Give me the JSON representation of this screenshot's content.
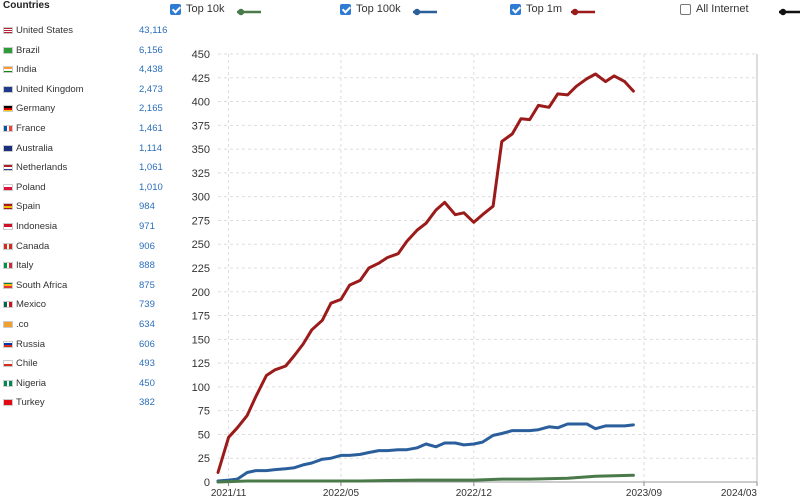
{
  "sidebar": {
    "title": "Countries",
    "countries": [
      {
        "name": "United States",
        "value": "43,116",
        "flag": "us"
      },
      {
        "name": "Brazil",
        "value": "6,156",
        "flag": "br"
      },
      {
        "name": "India",
        "value": "4,438",
        "flag": "in"
      },
      {
        "name": "United Kingdom",
        "value": "2,473",
        "flag": "gb"
      },
      {
        "name": "Germany",
        "value": "2,165",
        "flag": "de"
      },
      {
        "name": "France",
        "value": "1,461",
        "flag": "fr"
      },
      {
        "name": "Australia",
        "value": "1,114",
        "flag": "au"
      },
      {
        "name": "Netherlands",
        "value": "1,061",
        "flag": "nl"
      },
      {
        "name": "Poland",
        "value": "1,010",
        "flag": "pl"
      },
      {
        "name": "Spain",
        "value": "984",
        "flag": "es"
      },
      {
        "name": "Indonesia",
        "value": "971",
        "flag": "id"
      },
      {
        "name": "Canada",
        "value": "906",
        "flag": "ca"
      },
      {
        "name": "Italy",
        "value": "888",
        "flag": "it"
      },
      {
        "name": "South Africa",
        "value": "875",
        "flag": "za"
      },
      {
        "name": "Mexico",
        "value": "739",
        "flag": "mx"
      },
      {
        "name": ".co",
        "value": "634",
        "flag": "co"
      },
      {
        "name": "Russia",
        "value": "606",
        "flag": "ru"
      },
      {
        "name": "Chile",
        "value": "493",
        "flag": "cl"
      },
      {
        "name": "Nigeria",
        "value": "450",
        "flag": "ng"
      },
      {
        "name": "Turkey",
        "value": "382",
        "flag": "tr"
      }
    ]
  },
  "legend": [
    {
      "label": "Top 10k",
      "checked": true,
      "color": "#4a7a4a"
    },
    {
      "label": "Top 100k",
      "checked": true,
      "color": "#2b5f9c"
    },
    {
      "label": "Top 1m",
      "checked": true,
      "color": "#9b1b1b"
    },
    {
      "label": "All Internet",
      "checked": false,
      "color": "#111111"
    }
  ],
  "chart_data": {
    "type": "line",
    "x_ticks": [
      "2021/11",
      "2022/05",
      "2022/12",
      "2023/09",
      "2024/03"
    ],
    "x_start": "2021-10-15",
    "x_end": "2024-03-01",
    "ylim": [
      0,
      450
    ],
    "y_ticks": [
      0,
      25,
      50,
      75,
      100,
      125,
      150,
      175,
      200,
      225,
      250,
      275,
      300,
      325,
      350,
      375,
      400,
      425,
      450
    ],
    "grid": true,
    "series": [
      {
        "name": "Top 1m",
        "color": "#9b1b1b",
        "points": [
          [
            "2021-10-15",
            10
          ],
          [
            "2021-11-01",
            47
          ],
          [
            "2021-11-15",
            57
          ],
          [
            "2021-12-01",
            70
          ],
          [
            "2021-12-15",
            90
          ],
          [
            "2022-01-01",
            112
          ],
          [
            "2022-01-15",
            118
          ],
          [
            "2022-02-01",
            122
          ],
          [
            "2022-02-15",
            133
          ],
          [
            "2022-03-01",
            145
          ],
          [
            "2022-03-15",
            160
          ],
          [
            "2022-04-01",
            170
          ],
          [
            "2022-04-15",
            188
          ],
          [
            "2022-05-01",
            192
          ],
          [
            "2022-05-15",
            207
          ],
          [
            "2022-06-01",
            212
          ],
          [
            "2022-06-15",
            225
          ],
          [
            "2022-07-01",
            230
          ],
          [
            "2022-07-15",
            236
          ],
          [
            "2022-08-01",
            240
          ],
          [
            "2022-08-15",
            253
          ],
          [
            "2022-09-01",
            265
          ],
          [
            "2022-09-15",
            272
          ],
          [
            "2022-10-01",
            286
          ],
          [
            "2022-10-15",
            294
          ],
          [
            "2022-11-01",
            281
          ],
          [
            "2022-11-15",
            283
          ],
          [
            "2022-12-01",
            273
          ],
          [
            "2022-12-15",
            281
          ],
          [
            "2023-01-01",
            290
          ],
          [
            "2023-01-15",
            358
          ],
          [
            "2023-02-01",
            366
          ],
          [
            "2023-02-15",
            382
          ],
          [
            "2023-03-01",
            381
          ],
          [
            "2023-03-15",
            396
          ],
          [
            "2023-04-01",
            394
          ],
          [
            "2023-04-15",
            408
          ],
          [
            "2023-05-01",
            407
          ],
          [
            "2023-05-15",
            416
          ],
          [
            "2023-06-01",
            424
          ],
          [
            "2023-06-15",
            429
          ],
          [
            "2023-07-01",
            421
          ],
          [
            "2023-07-15",
            427
          ],
          [
            "2023-08-01",
            421
          ],
          [
            "2023-08-15",
            411
          ]
        ]
      },
      {
        "name": "Top 100k",
        "color": "#2b5f9c",
        "points": [
          [
            "2021-10-15",
            1
          ],
          [
            "2021-11-01",
            2
          ],
          [
            "2021-11-15",
            3
          ],
          [
            "2021-12-01",
            10
          ],
          [
            "2021-12-15",
            12
          ],
          [
            "2022-01-01",
            12
          ],
          [
            "2022-01-15",
            13
          ],
          [
            "2022-02-01",
            14
          ],
          [
            "2022-02-15",
            15
          ],
          [
            "2022-03-01",
            18
          ],
          [
            "2022-03-15",
            20
          ],
          [
            "2022-04-01",
            24
          ],
          [
            "2022-04-15",
            25
          ],
          [
            "2022-05-01",
            28
          ],
          [
            "2022-05-15",
            28
          ],
          [
            "2022-06-01",
            29
          ],
          [
            "2022-06-15",
            31
          ],
          [
            "2022-07-01",
            33
          ],
          [
            "2022-07-15",
            33
          ],
          [
            "2022-08-01",
            34
          ],
          [
            "2022-08-15",
            34
          ],
          [
            "2022-09-01",
            36
          ],
          [
            "2022-09-15",
            40
          ],
          [
            "2022-10-01",
            37
          ],
          [
            "2022-10-15",
            41
          ],
          [
            "2022-11-01",
            41
          ],
          [
            "2022-11-15",
            39
          ],
          [
            "2022-12-01",
            40
          ],
          [
            "2022-12-15",
            42
          ],
          [
            "2023-01-01",
            49
          ],
          [
            "2023-01-15",
            51
          ],
          [
            "2023-02-01",
            54
          ],
          [
            "2023-02-15",
            54
          ],
          [
            "2023-03-01",
            54
          ],
          [
            "2023-03-15",
            55
          ],
          [
            "2023-04-01",
            58
          ],
          [
            "2023-04-15",
            57
          ],
          [
            "2023-05-01",
            61
          ],
          [
            "2023-05-15",
            61
          ],
          [
            "2023-06-01",
            61
          ],
          [
            "2023-06-15",
            56
          ],
          [
            "2023-07-01",
            59
          ],
          [
            "2023-07-15",
            59
          ],
          [
            "2023-08-01",
            59
          ],
          [
            "2023-08-15",
            60
          ]
        ]
      },
      {
        "name": "Top 10k",
        "color": "#4a7a4a",
        "points": [
          [
            "2021-10-15",
            0
          ],
          [
            "2021-12-01",
            1
          ],
          [
            "2022-03-01",
            1
          ],
          [
            "2022-06-01",
            1
          ],
          [
            "2022-09-01",
            2
          ],
          [
            "2022-12-01",
            2
          ],
          [
            "2023-01-15",
            3
          ],
          [
            "2023-03-01",
            3
          ],
          [
            "2023-05-01",
            4
          ],
          [
            "2023-06-15",
            6
          ],
          [
            "2023-08-15",
            7
          ]
        ]
      }
    ]
  }
}
